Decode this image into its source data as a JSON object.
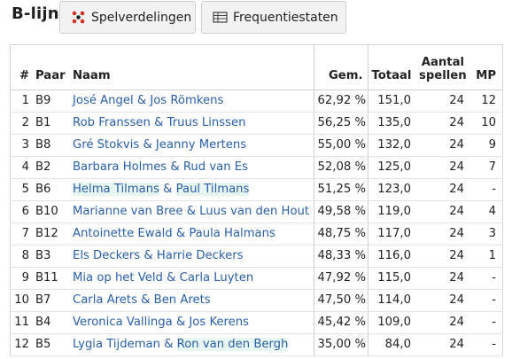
{
  "header": {
    "title": "B-lijn",
    "tabs": [
      {
        "label": "Spelverdelingen",
        "icon": "dots-icon"
      },
      {
        "label": "Frequentiestaten",
        "icon": "table-icon"
      }
    ]
  },
  "table": {
    "columns": {
      "nr": "#",
      "paar": "Paar",
      "naam": "Naam",
      "gem": "Gem.",
      "totaal": "Totaal",
      "aantal_1": "Aantal",
      "aantal_2": "spellen",
      "mp": "MP"
    },
    "rows": [
      {
        "nr": "1",
        "paar": "B9",
        "p1": "José Angel",
        "amp": " & ",
        "p2": "Jos Römkens",
        "gem": "62,92 %",
        "totaal": "151,0",
        "spellen": "24",
        "mp": "12",
        "hl1": false,
        "hl2": false
      },
      {
        "nr": "2",
        "paar": "B1",
        "p1": "Rob Franssen",
        "amp": " & ",
        "p2": "Truus Linssen",
        "gem": "56,25 %",
        "totaal": "135,0",
        "spellen": "24",
        "mp": "10",
        "hl1": false,
        "hl2": false
      },
      {
        "nr": "3",
        "paar": "B8",
        "p1": "Gré Stokvis",
        "amp": " & ",
        "p2": "Jeanny Mertens",
        "gem": "55,00 %",
        "totaal": "132,0",
        "spellen": "24",
        "mp": "9",
        "hl1": false,
        "hl2": false
      },
      {
        "nr": "4",
        "paar": "B2",
        "p1": "Barbara Holmes",
        "amp": " & ",
        "p2": "Rud van Es",
        "gem": "52,08 %",
        "totaal": "125,0",
        "spellen": "24",
        "mp": "7",
        "hl1": false,
        "hl2": false
      },
      {
        "nr": "5",
        "paar": "B6",
        "p1": "Helma Tilmans",
        "amp": " & ",
        "p2": "Paul Tilmans",
        "gem": "51,25 %",
        "totaal": "123,0",
        "spellen": "24",
        "mp": "-",
        "hl1": true,
        "hl2": true
      },
      {
        "nr": "6",
        "paar": "B10",
        "p1": "Marianne van Bree",
        "amp": " & ",
        "p2": "Luus van den Hout",
        "gem": "49,58 %",
        "totaal": "119,0",
        "spellen": "24",
        "mp": "4",
        "hl1": false,
        "hl2": false
      },
      {
        "nr": "7",
        "paar": "B12",
        "p1": "Antoinette Ewald",
        "amp": " & ",
        "p2": "Paula Halmans",
        "gem": "48,75 %",
        "totaal": "117,0",
        "spellen": "24",
        "mp": "3",
        "hl1": false,
        "hl2": false
      },
      {
        "nr": "8",
        "paar": "B3",
        "p1": "Els Deckers",
        "amp": " & ",
        "p2": "Harrie Deckers",
        "gem": "48,33 %",
        "totaal": "116,0",
        "spellen": "24",
        "mp": "1",
        "hl1": false,
        "hl2": false
      },
      {
        "nr": "9",
        "paar": "B11",
        "p1": "Mia op het Veld",
        "amp": " & ",
        "p2": "Carla Luyten",
        "gem": "47,92 %",
        "totaal": "115,0",
        "spellen": "24",
        "mp": "-",
        "hl1": false,
        "hl2": false
      },
      {
        "nr": "10",
        "paar": "B7",
        "p1": "Carla Arets",
        "amp": " & ",
        "p2": "Ben Arets",
        "gem": "47,50 %",
        "totaal": "114,0",
        "spellen": "24",
        "mp": "-",
        "hl1": false,
        "hl2": false
      },
      {
        "nr": "11",
        "paar": "B4",
        "p1": "Veronica Vallinga",
        "amp": " & ",
        "p2": "Jos Kerens",
        "gem": "45,42 %",
        "totaal": "109,0",
        "spellen": "24",
        "mp": "-",
        "hl1": false,
        "hl2": false
      },
      {
        "nr": "12",
        "paar": "B5",
        "p1": "Lygia Tijdeman",
        "amp": " & ",
        "p2": "Ron van den Bergh",
        "gem": "35,00 %",
        "totaal": "84,0",
        "spellen": "24",
        "mp": "-",
        "hl1": false,
        "hl2": true
      }
    ]
  },
  "colors": {
    "link": "#2a5fa8",
    "highlight": "#e7f6f0",
    "button_bg": "#f2f2f2"
  }
}
